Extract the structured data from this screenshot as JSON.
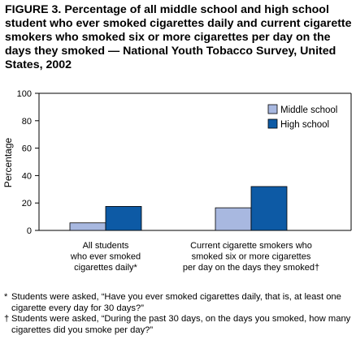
{
  "title": "FIGURE 3. Percentage of all middle school and high school student who ever smoked cigarettes daily and current cigarette smokers who smoked six or more cigarettes per day on the days they smoked — National Youth Tobacco Survey, United States, 2002",
  "chart_data": {
    "type": "bar",
    "title": "FIGURE 3. Percentage of all middle school and high school student who ever smoked cigarettes daily and current cigarette smokers who smoked six or more cigarettes per day on the days they smoked — National Youth Tobacco Survey, United States, 2002",
    "ylabel": "Percentage",
    "xlabel": "",
    "ylim": [
      0,
      100
    ],
    "yticks": [
      0,
      20,
      40,
      60,
      80,
      100
    ],
    "yticks_labels": [
      "0",
      "20",
      "40",
      "60",
      "80",
      "100"
    ],
    "grid": false,
    "legend_position": "top-right",
    "categories": [
      [
        "All students",
        "who ever smoked",
        "cigarettes daily*"
      ],
      [
        "Current cigarette smokers who",
        "smoked six or more cigarettes",
        "per day on the days they smoked†"
      ]
    ],
    "series": [
      {
        "name": "Middle school",
        "color": "#a8b8e0",
        "values": [
          5.5,
          16.5
        ]
      },
      {
        "name": "High school",
        "color": "#0d5aa5",
        "values": [
          17.5,
          32.0
        ]
      }
    ]
  },
  "footnotes": [
    {
      "mark": "*",
      "text": "Students were asked, “Have you ever smoked cigarettes daily, that is, at least one cigarette every day for 30 days?”"
    },
    {
      "mark": "†",
      "text": "Students were asked, “During the past 30 days, on the days you smoked, how many cigarettes did you smoke per day?”"
    }
  ]
}
